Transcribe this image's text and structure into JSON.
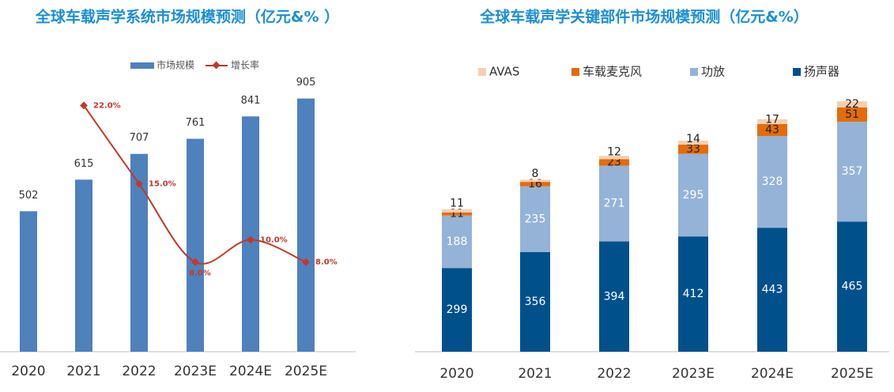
{
  "chart_data": [
    {
      "type": "bar",
      "title": "全球车载声学系统市场规模预测（亿元&% ）",
      "categories": [
        "2020",
        "2021",
        "2022",
        "2023E",
        "2024E",
        "2025E"
      ],
      "series": [
        {
          "name": "市场规模",
          "type": "bar",
          "color": "#4f81bd",
          "values": [
            502,
            615,
            707,
            761,
            841,
            905
          ]
        },
        {
          "name": "增长率",
          "type": "line",
          "axis": "y2",
          "color": "#c0392b",
          "values": [
            null,
            22.0,
            15.0,
            8.0,
            10.0,
            8.0
          ],
          "value_labels": [
            null,
            "22.0%",
            "15.0%",
            "8.0%",
            "10.0%",
            "8.0%"
          ]
        }
      ],
      "ylim": [
        0,
        1000
      ],
      "y2lim": [
        0,
        25
      ],
      "legend": "top"
    },
    {
      "type": "stacked_bar",
      "title": "全球车载声学关键部件市场规模预测（亿元&%）",
      "categories": [
        "2020",
        "2021",
        "2022",
        "2023E",
        "2024E",
        "2025E"
      ],
      "series": [
        {
          "name": "AVAS",
          "color": "#f8cfb1",
          "values": [
            11,
            8,
            12,
            14,
            17,
            22
          ]
        },
        {
          "name": "车载麦克风",
          "color": "#e46c0a",
          "values": [
            11,
            16,
            23,
            33,
            43,
            51
          ]
        },
        {
          "name": "功放",
          "color": "#95b3d7",
          "values": [
            188,
            235,
            271,
            295,
            328,
            357
          ]
        },
        {
          "name": "扬声器",
          "color": "#00508c",
          "values": [
            299,
            356,
            394,
            412,
            443,
            465
          ]
        }
      ],
      "ylim": [
        0,
        1000
      ],
      "legend": "top"
    }
  ]
}
